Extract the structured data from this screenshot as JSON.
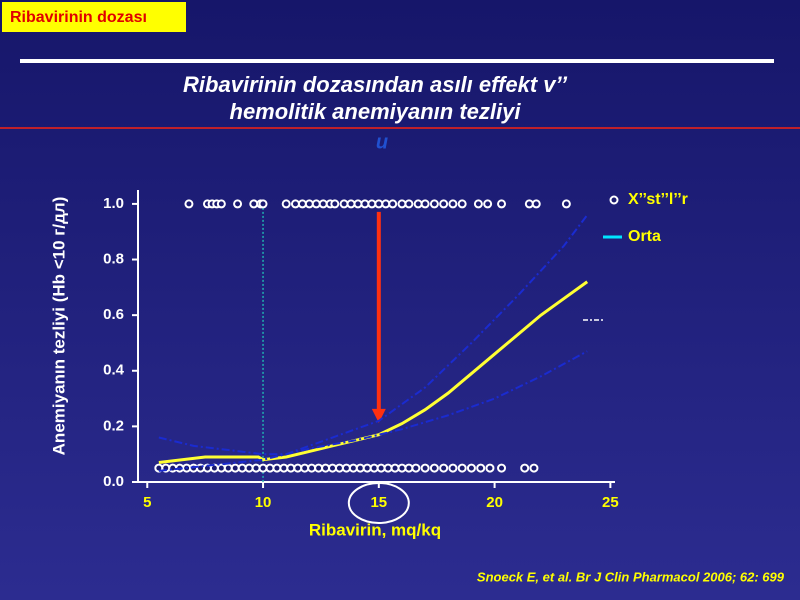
{
  "header": "Ribavirinin dozası",
  "citation": "Snoeck E, et al. Br J Clin Pharmacol 2006; 62: 699",
  "chart_data": {
    "type": "line",
    "title": [
      "Ribavirinin dozasından asılı effekt v’’",
      "hemolitik anemiyanın tezliyi",
      "u"
    ],
    "x_label": "Ribavirin, mq/kq",
    "y_label": "Anemiyanın tezliyi (Hb <10 г/дл)",
    "xlim": [
      4.6,
      25.2
    ],
    "ylim": [
      0,
      1.05
    ],
    "xticks": [
      5,
      10,
      15,
      20,
      25
    ],
    "yticks": [
      {
        "value": 0,
        "label": "0.0"
      },
      0.2,
      0.4,
      0.6,
      0.8,
      {
        "value": 1,
        "label": "1.0"
      }
    ],
    "reference_x": 10,
    "highlight_x": 15,
    "arrow": {
      "x": 15,
      "y_from": 1.0,
      "y_to": 0.22
    },
    "series": [
      {
        "name": "X’’st’’l’’r",
        "kind": "scatter",
        "color": "#ffffff",
        "x": [
          6.8,
          7.6,
          7.8,
          8.0,
          8.2,
          8.9,
          9.6,
          9.9,
          10.0,
          11.0,
          11.4,
          11.7,
          12.0,
          12.3,
          12.6,
          12.9,
          13.1,
          13.5,
          13.8,
          14.1,
          14.4,
          14.7,
          15.0,
          15.3,
          15.6,
          16.0,
          16.3,
          16.7,
          17.0,
          17.4,
          17.8,
          18.2,
          18.6,
          19.3,
          19.7,
          20.3,
          21.5,
          21.8,
          23.1,
          5.5,
          5.8,
          6.1,
          6.4,
          6.7,
          7.0,
          7.3,
          7.6,
          7.9,
          8.2,
          8.5,
          8.8,
          9.1,
          9.4,
          9.7,
          10.0,
          10.3,
          10.6,
          10.9,
          11.2,
          11.5,
          11.8,
          12.1,
          12.4,
          12.7,
          13.0,
          13.3,
          13.6,
          13.9,
          14.2,
          14.5,
          14.8,
          15.1,
          15.4,
          15.7,
          16.0,
          16.3,
          16.6,
          17.0,
          17.4,
          17.8,
          18.2,
          18.6,
          19.0,
          19.4,
          19.8,
          20.3,
          21.3,
          21.7
        ],
        "values": [
          1,
          1,
          1,
          1,
          1,
          1,
          1,
          1,
          1,
          1,
          1,
          1,
          1,
          1,
          1,
          1,
          1,
          1,
          1,
          1,
          1,
          1,
          1,
          1,
          1,
          1,
          1,
          1,
          1,
          1,
          1,
          1,
          1,
          1,
          1,
          1,
          1,
          1,
          1,
          0.05,
          0.05,
          0.05,
          0.05,
          0.05,
          0.05,
          0.05,
          0.05,
          0.05,
          0.05,
          0.05,
          0.05,
          0.05,
          0.05,
          0.05,
          0.05,
          0.05,
          0.05,
          0.05,
          0.05,
          0.05,
          0.05,
          0.05,
          0.05,
          0.05,
          0.05,
          0.05,
          0.05,
          0.05,
          0.05,
          0.05,
          0.05,
          0.05,
          0.05,
          0.05,
          0.05,
          0.05,
          0.05,
          0.05,
          0.05,
          0.05,
          0.05,
          0.05,
          0.05,
          0.05,
          0.05,
          0.05,
          0.05,
          0.05
        ]
      },
      {
        "name": "Orta",
        "kind": "line",
        "color": "#ffff33",
        "legend_color": "#00e5ff",
        "x": [
          5.5,
          7.5,
          9.8,
          10,
          11,
          12,
          13,
          14,
          15,
          16,
          17,
          18,
          19,
          20,
          21,
          22,
          23,
          24
        ],
        "values": [
          0.07,
          0.09,
          0.09,
          0.08,
          0.09,
          0.11,
          0.13,
          0.15,
          0.17,
          0.21,
          0.26,
          0.32,
          0.39,
          0.46,
          0.53,
          0.6,
          0.66,
          0.72
        ]
      },
      {
        "kind": "dashed",
        "color": "#1a2bd0",
        "x": [
          5.5,
          7,
          10,
          11,
          13,
          15,
          17,
          19,
          21,
          23,
          24
        ],
        "values": [
          0.16,
          0.13,
          0.1,
          0.1,
          0.16,
          0.22,
          0.34,
          0.5,
          0.67,
          0.85,
          0.96
        ]
      },
      {
        "kind": "dashed",
        "color": "#1a2bd0",
        "x": [
          5.5,
          10,
          12,
          14,
          16,
          18,
          20,
          22,
          24
        ],
        "values": [
          0.04,
          0.08,
          0.12,
          0.15,
          0.19,
          0.24,
          0.3,
          0.38,
          0.47
        ]
      }
    ]
  }
}
